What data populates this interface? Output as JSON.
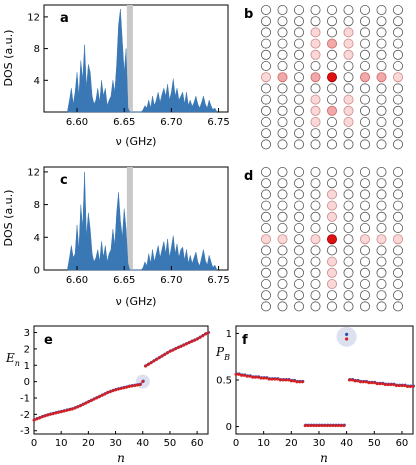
{
  "colors": {
    "dos_fill": "#3a78b5",
    "highlight_band": "#c8c8c8",
    "site_center": "#e01010",
    "site_strong": "#f0a8a8",
    "site_weak": "#fad8d8",
    "site_empty": "#ffffff",
    "series_primary": "#d42020",
    "series_secondary": "#3050c0",
    "highlight_disk": "#dde0ee"
  },
  "chart_data": [
    {
      "panel_label": "a",
      "type": "area",
      "xlabel": "ν (GHz)",
      "ylabel": "DOS (a.u.)",
      "xlim": [
        6.565,
        6.76
      ],
      "ylim": [
        0,
        13.5
      ],
      "xticks": [
        "6.60",
        "6.65",
        "6.70",
        "6.75"
      ],
      "yticks": [
        "4",
        "8",
        "12"
      ],
      "highlight_x": 6.656,
      "x": [
        6.59,
        6.592,
        6.594,
        6.596,
        6.598,
        6.6,
        6.602,
        6.604,
        6.606,
        6.608,
        6.61,
        6.612,
        6.614,
        6.616,
        6.618,
        6.62,
        6.622,
        6.624,
        6.626,
        6.628,
        6.63,
        6.632,
        6.634,
        6.636,
        6.638,
        6.64,
        6.642,
        6.644,
        6.646,
        6.648,
        6.65,
        6.652,
        6.654,
        6.656,
        6.658,
        6.66,
        6.662,
        6.664,
        6.666,
        6.668,
        6.67,
        6.672,
        6.674,
        6.676,
        6.678,
        6.68,
        6.682,
        6.684,
        6.686,
        6.688,
        6.69,
        6.692,
        6.694,
        6.696,
        6.698,
        6.7,
        6.702,
        6.704,
        6.706,
        6.708,
        6.71,
        6.712,
        6.714,
        6.716,
        6.718,
        6.72,
        6.722,
        6.724,
        6.726,
        6.728,
        6.73,
        6.732,
        6.734,
        6.736,
        6.738,
        6.74,
        6.742,
        6.744,
        6.746,
        6.748
      ],
      "y": [
        0.2,
        1.5,
        3.0,
        1.0,
        2.5,
        5.0,
        2.0,
        6.5,
        4.0,
        8.5,
        3.0,
        6.0,
        5.0,
        2.0,
        1.0,
        1.5,
        3.0,
        1.2,
        4.0,
        2.0,
        3.0,
        0.8,
        1.5,
        2.0,
        4.0,
        2.5,
        6.0,
        11.0,
        13.0,
        9.0,
        5.0,
        8.0,
        0.5,
        0,
        0,
        0,
        0,
        0,
        0,
        0,
        0.3,
        0.8,
        0.5,
        1.5,
        0.5,
        2.0,
        0.8,
        1.5,
        2.5,
        1.2,
        2.2,
        3.0,
        2.0,
        3.5,
        1.5,
        2.5,
        4.2,
        2.0,
        3.0,
        1.5,
        2.0,
        2.5,
        1.0,
        2.5,
        0.8,
        1.5,
        0.7,
        1.2,
        2.0,
        1.0,
        0.5,
        1.2,
        2.0,
        1.0,
        0.5,
        1.5,
        0.8,
        0.3,
        0.5,
        0.1
      ]
    },
    {
      "panel_label": "c",
      "type": "area",
      "xlabel": "ν (GHz)",
      "ylabel": "DOS (a.u.)",
      "xlim": [
        6.565,
        6.76
      ],
      "ylim": [
        0,
        12.6
      ],
      "xticks": [
        "6.60",
        "6.65",
        "6.70",
        "6.75"
      ],
      "yticks": [
        "0",
        "4",
        "8",
        "12"
      ],
      "highlight_x": 6.656,
      "x": [
        6.59,
        6.592,
        6.594,
        6.596,
        6.598,
        6.6,
        6.602,
        6.604,
        6.606,
        6.608,
        6.61,
        6.612,
        6.614,
        6.616,
        6.618,
        6.62,
        6.622,
        6.624,
        6.626,
        6.628,
        6.63,
        6.632,
        6.634,
        6.636,
        6.638,
        6.64,
        6.642,
        6.644,
        6.646,
        6.648,
        6.65,
        6.652,
        6.654,
        6.656,
        6.658,
        6.66,
        6.662,
        6.664,
        6.666,
        6.668,
        6.67,
        6.672,
        6.674,
        6.676,
        6.678,
        6.68,
        6.682,
        6.684,
        6.686,
        6.688,
        6.69,
        6.692,
        6.694,
        6.696,
        6.698,
        6.7,
        6.702,
        6.704,
        6.706,
        6.708,
        6.71,
        6.712,
        6.714,
        6.716,
        6.718,
        6.72,
        6.722,
        6.724,
        6.726,
        6.728,
        6.73,
        6.732,
        6.734,
        6.736,
        6.738,
        6.74,
        6.742,
        6.744,
        6.746,
        6.748
      ],
      "y": [
        0.2,
        1.5,
        3.0,
        1.5,
        2.0,
        5.5,
        2.5,
        8.0,
        5.0,
        12.0,
        4.0,
        7.0,
        5.0,
        2.0,
        1.0,
        1.5,
        2.5,
        1.0,
        3.5,
        1.5,
        3.0,
        1.0,
        2.0,
        2.5,
        5.0,
        3.0,
        7.0,
        9.5,
        6.0,
        4.0,
        7.5,
        5.0,
        0.8,
        0,
        0,
        0,
        0,
        0,
        0,
        0,
        0.3,
        1.0,
        0.5,
        2.0,
        0.8,
        2.5,
        1.0,
        2.0,
        3.0,
        1.5,
        2.5,
        3.5,
        2.0,
        3.8,
        1.5,
        2.8,
        4.2,
        2.0,
        3.2,
        1.5,
        2.5,
        2.8,
        1.2,
        2.5,
        0.8,
        1.8,
        0.8,
        1.5,
        2.2,
        1.0,
        0.5,
        1.5,
        2.5,
        1.2,
        0.6,
        1.8,
        1.0,
        0.3,
        0.6,
        0.1
      ]
    },
    {
      "panel_label": "b",
      "type": "heatmap",
      "rows": 13,
      "cols": 9,
      "note_levels": "0 empty, 1 weak, 2 strong, 3 center",
      "cells": [
        [
          0,
          0,
          0,
          0,
          0,
          0,
          0,
          0,
          0
        ],
        [
          0,
          0,
          0,
          0,
          0,
          0,
          0,
          0,
          0
        ],
        [
          0,
          0,
          0,
          1,
          0,
          1,
          0,
          0,
          0
        ],
        [
          0,
          0,
          0,
          1,
          2,
          1,
          0,
          0,
          0
        ],
        [
          0,
          0,
          0,
          1,
          0,
          1,
          0,
          0,
          0
        ],
        [
          0,
          0,
          0,
          0,
          0,
          0,
          0,
          0,
          0
        ],
        [
          1,
          2,
          0,
          2,
          3,
          0,
          2,
          2,
          1
        ],
        [
          0,
          0,
          0,
          0,
          0,
          0,
          0,
          0,
          0
        ],
        [
          0,
          0,
          0,
          1,
          0,
          1,
          0,
          0,
          0
        ],
        [
          0,
          0,
          0,
          1,
          2,
          1,
          0,
          0,
          0
        ],
        [
          0,
          0,
          0,
          1,
          0,
          1,
          0,
          0,
          0
        ],
        [
          0,
          0,
          0,
          0,
          0,
          0,
          0,
          0,
          0
        ],
        [
          0,
          0,
          0,
          0,
          0,
          0,
          0,
          0,
          0
        ]
      ]
    },
    {
      "panel_label": "d",
      "type": "heatmap",
      "rows": 13,
      "cols": 9,
      "note_levels": "0 empty, 1 weak, 2 strong, 3 center",
      "cells": [
        [
          0,
          0,
          0,
          0,
          0,
          0,
          0,
          0,
          0
        ],
        [
          0,
          0,
          0,
          0,
          0,
          0,
          0,
          0,
          0
        ],
        [
          0,
          0,
          0,
          0,
          1,
          0,
          0,
          0,
          0
        ],
        [
          0,
          0,
          0,
          0,
          1,
          0,
          0,
          0,
          0
        ],
        [
          0,
          0,
          0,
          0,
          1,
          0,
          0,
          0,
          0
        ],
        [
          0,
          0,
          0,
          0,
          0,
          0,
          0,
          0,
          0
        ],
        [
          1,
          1,
          0,
          1,
          3,
          0,
          1,
          1,
          1
        ],
        [
          0,
          0,
          0,
          0,
          0,
          0,
          0,
          0,
          0
        ],
        [
          0,
          0,
          0,
          0,
          1,
          0,
          0,
          0,
          0
        ],
        [
          0,
          0,
          0,
          0,
          1,
          0,
          0,
          0,
          0
        ],
        [
          0,
          0,
          0,
          0,
          1,
          0,
          0,
          0,
          0
        ],
        [
          0,
          0,
          0,
          0,
          0,
          0,
          0,
          0,
          0
        ],
        [
          0,
          0,
          0,
          0,
          0,
          0,
          0,
          0,
          0
        ]
      ]
    },
    {
      "panel_label": "e",
      "type": "scatter",
      "xlabel": "n",
      "ylabel": "E",
      "ylabel_sub": "n",
      "xlim": [
        0,
        64
      ],
      "ylim": [
        -3.2,
        3.4
      ],
      "xticks": [
        "0",
        "10",
        "20",
        "30",
        "40",
        "50",
        "60"
      ],
      "yticks": [
        "-3",
        "-2",
        "-1",
        "0",
        "1",
        "2",
        "3"
      ],
      "highlight_n": 40,
      "y": [
        -2.35,
        -2.28,
        -2.22,
        -2.15,
        -2.1,
        -2.05,
        -2.0,
        -1.96,
        -1.92,
        -1.88,
        -1.84,
        -1.8,
        -1.76,
        -1.72,
        -1.68,
        -1.62,
        -1.55,
        -1.48,
        -1.4,
        -1.32,
        -1.24,
        -1.16,
        -1.08,
        -1.0,
        -0.92,
        -0.84,
        -0.76,
        -0.68,
        -0.62,
        -0.56,
        -0.5,
        -0.46,
        -0.42,
        -0.38,
        -0.34,
        -0.3,
        -0.27,
        -0.24,
        -0.21,
        -0.18,
        0.0,
        0.95,
        1.05,
        1.15,
        1.25,
        1.35,
        1.45,
        1.55,
        1.65,
        1.75,
        1.85,
        1.92,
        2.0,
        2.08,
        2.15,
        2.22,
        2.3,
        2.38,
        2.45,
        2.52,
        2.6,
        2.7,
        2.8,
        2.9,
        2.98
      ]
    },
    {
      "panel_label": "f",
      "type": "scatter",
      "xlabel": "n",
      "ylabel": "P",
      "ylabel_sub": "B",
      "xlim": [
        0,
        64
      ],
      "ylim": [
        -0.08,
        1.08
      ],
      "xticks": [
        "0",
        "10",
        "20",
        "30",
        "40",
        "50",
        "60"
      ],
      "yticks": [
        "0",
        "0.5",
        "1"
      ],
      "highlight_n": 40,
      "highlight_values": [
        0.99,
        0.94
      ],
      "y": [
        0.56,
        0.56,
        0.55,
        0.55,
        0.54,
        0.54,
        0.53,
        0.53,
        0.53,
        0.52,
        0.52,
        0.52,
        0.51,
        0.51,
        0.51,
        0.51,
        0.5,
        0.5,
        0.5,
        0.5,
        0.49,
        0.49,
        0.48,
        0.48,
        0.48,
        0.01,
        0.01,
        0.01,
        0.01,
        0.01,
        0.01,
        0.01,
        0.01,
        0.01,
        0.01,
        0.01,
        0.01,
        0.01,
        0.01,
        0.01,
        0.95,
        0.5,
        0.5,
        0.49,
        0.49,
        0.48,
        0.48,
        0.48,
        0.47,
        0.47,
        0.47,
        0.46,
        0.46,
        0.46,
        0.45,
        0.45,
        0.45,
        0.45,
        0.44,
        0.44,
        0.44,
        0.44,
        0.43,
        0.43,
        0.43
      ]
    }
  ]
}
